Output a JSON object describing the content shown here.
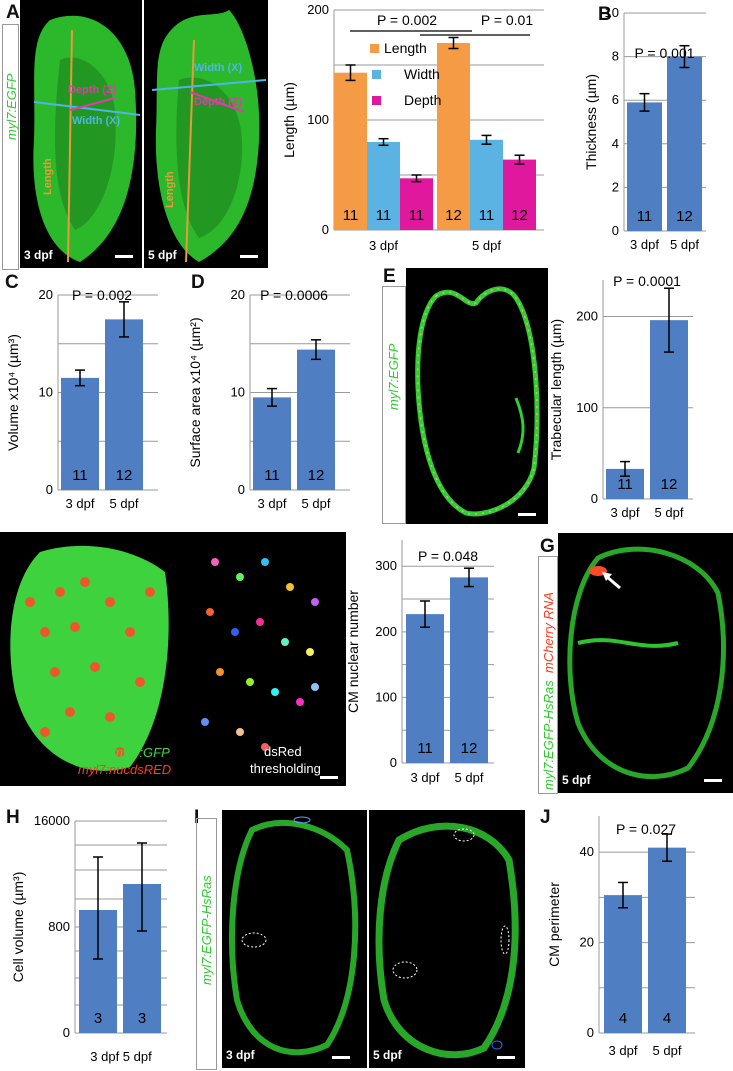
{
  "panels": {
    "A": {
      "letter": "A",
      "label": "myl7:EGFP",
      "img1_tag": "3 dpf",
      "img2_tag": "5 dpf",
      "annot_length": "Length",
      "annot_width": "Width (X)",
      "annot_depth": "Depth (Z)",
      "chart": {
        "ylabel": "Length (µm)",
        "yticks": [
          "0",
          "100",
          "200"
        ],
        "categories": [
          "3 dpf",
          "5 dpf"
        ],
        "legend": [
          "Length",
          "Width",
          "Depth"
        ],
        "p1": "P = 0.002",
        "p2": "P = 0.01"
      }
    },
    "B": {
      "letter": "B",
      "ylabel": "Thickness (µm)",
      "yticks": [
        "0",
        "2",
        "4",
        "6",
        "8",
        "10"
      ],
      "categories": [
        "3 dpf",
        "5 dpf"
      ],
      "p": "P = 0.001",
      "n": [
        "11",
        "12"
      ]
    },
    "C": {
      "letter": "C",
      "ylabel": "Volume x10⁴ (µm³)",
      "yticks": [
        "0",
        "10",
        "20"
      ],
      "categories": [
        "3 dpf",
        "5 dpf"
      ],
      "p": "P = 0.002",
      "n": [
        "11",
        "12"
      ]
    },
    "D": {
      "letter": "D",
      "ylabel": "Surface area x10⁴ (µm²)",
      "yticks": [
        "0",
        "10",
        "20"
      ],
      "categories": [
        "3 dpf",
        "5 dpf"
      ],
      "p": "P = 0.0006",
      "n": [
        "11",
        "12"
      ]
    },
    "E": {
      "letter": "E",
      "label": "myl7:EGFP",
      "ylabel": "Trabecular length (µm)",
      "yticks": [
        "0",
        "100",
        "200"
      ],
      "categories": [
        "3 dpf",
        "5 dpf"
      ],
      "p": "P = 0.0001",
      "n": [
        "11",
        "12"
      ]
    },
    "F": {
      "letter": "F",
      "label1": "myl7:GFP",
      "label2": "myl7:nucdsRED",
      "threshold1": "dsRed",
      "threshold2": "thresholding",
      "ylabel": "CM nuclear number",
      "yticks": [
        "0",
        "100",
        "200",
        "300"
      ],
      "categories": [
        "3 dpf",
        "5 dpf"
      ],
      "p": "P = 0.048",
      "n": [
        "11",
        "12"
      ]
    },
    "G": {
      "letter": "G",
      "label1": "myl7:EGFP-HsRas",
      "label2": "mCherry RNA",
      "tag": "5 dpf"
    },
    "H": {
      "letter": "H",
      "ylabel": "Cell volume (µm³)",
      "yticks": [
        "0",
        "800",
        "16000"
      ],
      "categories_joined": "3 dpf 5 dpf",
      "n": [
        "3",
        "3"
      ]
    },
    "I": {
      "letter": "I",
      "label": "myl7:EGFP-HsRas",
      "tag1": "3 dpf",
      "tag2": "5 dpf"
    },
    "J": {
      "letter": "J",
      "ylabel": "CM perimeter",
      "yticks": [
        "0",
        "20",
        "40"
      ],
      "categories": [
        "3 dpf",
        "5 dpf"
      ],
      "p": "P = 0.027",
      "n": [
        "4",
        "4"
      ]
    }
  },
  "colors": {
    "bar": "#4f7fc2",
    "length": "#f59a45",
    "width": "#5bb3e3",
    "depth": "#e0189d",
    "gfp": "#35d035",
    "red": "#ff4a2a"
  },
  "chart_data": [
    {
      "id": "A",
      "type": "bar",
      "categories": [
        "3 dpf",
        "5 dpf"
      ],
      "ylabel": "Length (µm)",
      "ylim": [
        0,
        200
      ],
      "series": [
        {
          "name": "Length",
          "values": [
            143,
            170
          ],
          "err": [
            7,
            5
          ],
          "n": [
            "11",
            "12"
          ]
        },
        {
          "name": "Width",
          "values": [
            80,
            82
          ],
          "err": [
            3,
            4
          ],
          "n": [
            "11",
            "11"
          ]
        },
        {
          "name": "Depth",
          "values": [
            47,
            64
          ],
          "err": [
            3,
            4
          ],
          "n": [
            "11",
            "12"
          ]
        }
      ],
      "annotations": [
        "P = 0.002",
        "P = 0.01"
      ]
    },
    {
      "id": "B",
      "type": "bar",
      "categories": [
        "3 dpf",
        "5 dpf"
      ],
      "values": [
        5.9,
        8.0
      ],
      "err": [
        0.4,
        0.5
      ],
      "ylim": [
        0,
        10
      ],
      "ylabel": "Thickness (µm)"
    },
    {
      "id": "C",
      "type": "bar",
      "categories": [
        "3 dpf",
        "5 dpf"
      ],
      "values": [
        11.5,
        17.5
      ],
      "err": [
        0.8,
        1.8
      ],
      "ylim": [
        0,
        20
      ],
      "ylabel": "Volume x10⁴ (µm³)"
    },
    {
      "id": "D",
      "type": "bar",
      "categories": [
        "3 dpf",
        "5 dpf"
      ],
      "values": [
        9.5,
        14.4
      ],
      "err": [
        0.9,
        1.0
      ],
      "ylim": [
        0,
        20
      ],
      "ylabel": "Surface area x10⁴ (µm²)"
    },
    {
      "id": "E",
      "type": "bar",
      "categories": [
        "3 dpf",
        "5 dpf"
      ],
      "values": [
        33,
        196
      ],
      "err": [
        8,
        35
      ],
      "ylim": [
        0,
        240
      ],
      "ylabel": "Trabecular length (µm)"
    },
    {
      "id": "F",
      "type": "bar",
      "categories": [
        "3 dpf",
        "5 dpf"
      ],
      "values": [
        227,
        283
      ],
      "err": [
        20,
        14
      ],
      "ylim": [
        0,
        340
      ],
      "ylabel": "CM nuclear number"
    },
    {
      "id": "H",
      "type": "bar",
      "categories": [
        "3 dpf",
        "5 dpf"
      ],
      "values": [
        9300,
        11900
      ],
      "err": [
        2300,
        2500
      ],
      "ylabel": "Cell volume (µm³)"
    },
    {
      "id": "J",
      "type": "bar",
      "categories": [
        "3 dpf",
        "5 dpf"
      ],
      "values": [
        30.5,
        41
      ],
      "err": [
        2.8,
        3
      ],
      "ylim": [
        0,
        48
      ],
      "ylabel": "CM perimeter"
    }
  ]
}
